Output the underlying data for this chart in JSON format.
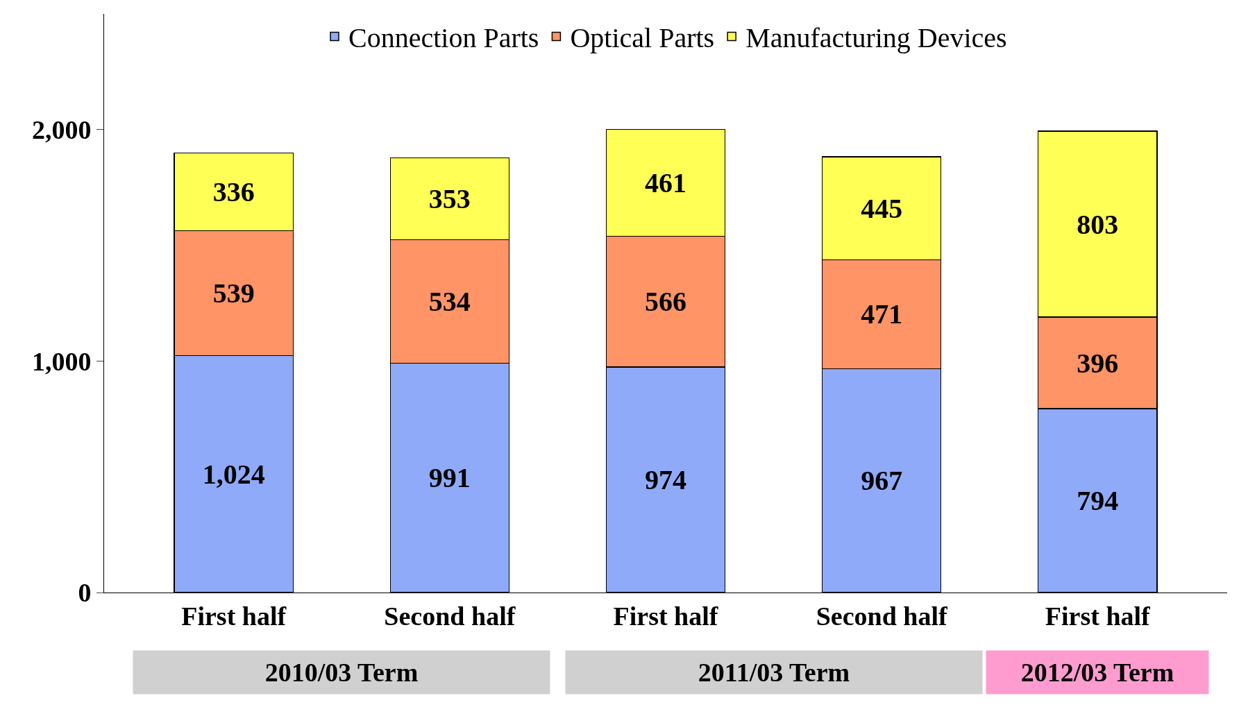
{
  "chart_data": {
    "type": "bar",
    "stacked": true,
    "categories": [
      "First half",
      "Second half",
      "First half",
      "Second half",
      "First half"
    ],
    "series": [
      {
        "name": "Connection Parts",
        "color": "#8faaf8",
        "values": [
          1024,
          991,
          974,
          967,
          794
        ],
        "value_labels": [
          "1,024",
          "991",
          "974",
          "967",
          "794"
        ]
      },
      {
        "name": "Optical Parts",
        "color": "#ff9466",
        "values": [
          539,
          534,
          566,
          471,
          396
        ],
        "value_labels": [
          "539",
          "534",
          "566",
          "471",
          "396"
        ]
      },
      {
        "name": "Manufacturing Devices",
        "color": "#ffff55",
        "values": [
          336,
          353,
          461,
          445,
          803
        ],
        "value_labels": [
          "336",
          "353",
          "461",
          "445",
          "803"
        ]
      }
    ],
    "ylim": [
      0,
      2500
    ],
    "yticks": [
      0,
      {
        "value": 1000,
        "label": "1,000"
      },
      {
        "value": 2000,
        "label": "2,000"
      }
    ],
    "grid": false,
    "legend": "top",
    "annotations": [
      "2010/03 Term",
      "2011/03 Term",
      "2012/03 Term"
    ]
  }
}
